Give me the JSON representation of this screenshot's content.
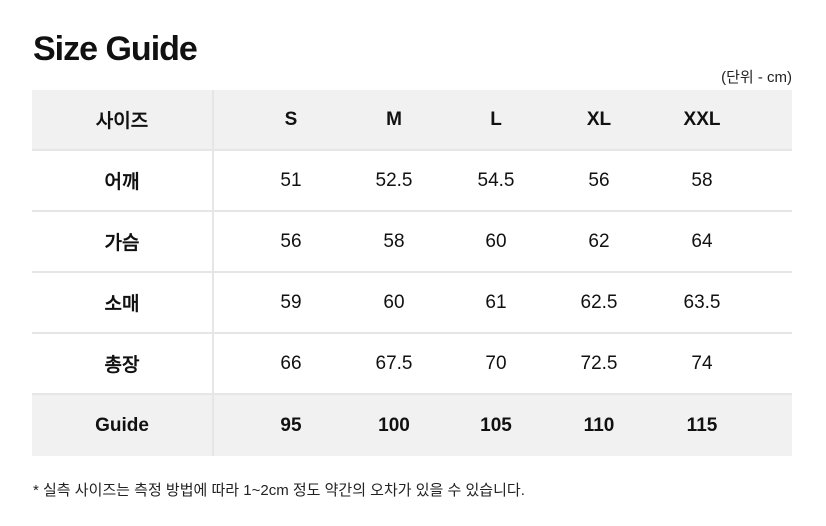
{
  "title": "Size Guide",
  "unit": "(단위 - cm)",
  "table": {
    "header": {
      "label": "사이즈",
      "values": [
        "S",
        "M",
        "L",
        "XL",
        "XXL"
      ]
    },
    "rows": [
      {
        "label": "어깨",
        "values": [
          "51",
          "52.5",
          "54.5",
          "56",
          "58"
        ]
      },
      {
        "label": "가슴",
        "values": [
          "56",
          "58",
          "60",
          "62",
          "64"
        ]
      },
      {
        "label": "소매",
        "values": [
          "59",
          "60",
          "61",
          "62.5",
          "63.5"
        ]
      },
      {
        "label": "총장",
        "values": [
          "66",
          "67.5",
          "70",
          "72.5",
          "74"
        ]
      }
    ],
    "footer": {
      "label": "Guide",
      "values": [
        "95",
        "100",
        "105",
        "110",
        "115"
      ]
    }
  },
  "note": "* 실측 사이즈는 측정 방법에 따라 1~2cm 정도 약간의 오차가 있을 수 있습니다."
}
